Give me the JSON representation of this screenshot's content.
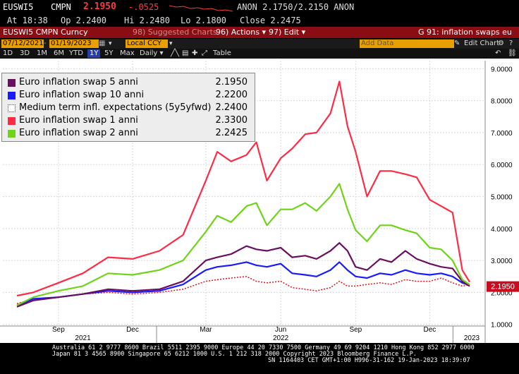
{
  "ticker": {
    "symbol": "EUSWI5",
    "source": "CMPN",
    "last": "2.1950",
    "change": "-.0525",
    "bid_ask": "ANON 2.1750/2.2150 ANON",
    "time": "At 18:38",
    "open": "Op 2.2400",
    "high": "Hi 2.2480",
    "low": "Lo 2.1800",
    "close": "Close 2.2475"
  },
  "menubar": {
    "security": "EUSWI5 CMPN Curncy",
    "suggested": "98) Suggested Charts",
    "actions": "96) Actions ▾",
    "edit": "97) Edit ▾",
    "function": "G 91: inflation swaps eu"
  },
  "toolbar1": {
    "start_date": "07/12/2021",
    "end_date": "01/19/2023",
    "currency": "Local CCY",
    "add_data": "Add Data",
    "edit_chart": "Edit Chart"
  },
  "toolbar2": {
    "ranges": [
      "1D",
      "3D",
      "1M",
      "6M",
      "YTD",
      "1Y",
      "5Y",
      "Max"
    ],
    "selected_range": "1Y",
    "frequency": "Daily ▾",
    "table": "Table"
  },
  "last_price_tag": "2.1950",
  "colors": {
    "series1": "#6a0f5e",
    "series2": "#1a1aff",
    "series3": "#e0101a",
    "series4": "#ff2b45",
    "series5": "#6fd319",
    "menubar": "#8b0d14",
    "background": "#ffffff"
  },
  "chart_data": {
    "type": "line",
    "x": [
      "2021-07-12",
      "2021-08-01",
      "2021-09-01",
      "2021-10-01",
      "2021-11-01",
      "2021-12-01",
      "2022-01-03",
      "2022-02-01",
      "2022-03-01",
      "2022-03-15",
      "2022-04-01",
      "2022-04-20",
      "2022-05-02",
      "2022-05-15",
      "2022-06-01",
      "2022-06-15",
      "2022-07-01",
      "2022-07-15",
      "2022-08-01",
      "2022-08-12",
      "2022-08-22",
      "2022-09-01",
      "2022-09-15",
      "2022-10-01",
      "2022-10-15",
      "2022-11-01",
      "2022-11-15",
      "2022-12-01",
      "2022-12-15",
      "2022-12-29",
      "2023-01-10",
      "2023-01-19"
    ],
    "series": [
      {
        "name": "Euro inflation swap 5 anni",
        "last": "2.1950",
        "values": [
          1.55,
          1.75,
          1.85,
          1.95,
          2.1,
          2.05,
          2.1,
          2.35,
          3.0,
          3.1,
          3.2,
          3.45,
          3.35,
          3.3,
          3.4,
          3.1,
          3.15,
          3.05,
          3.3,
          3.55,
          3.3,
          2.8,
          2.7,
          3.05,
          2.95,
          3.3,
          3.05,
          2.9,
          2.8,
          2.75,
          2.35,
          2.195
        ]
      },
      {
        "name": "Euro inflation swap 10 anni",
        "last": "2.2200",
        "values": [
          1.6,
          1.8,
          1.85,
          1.95,
          2.05,
          2.0,
          2.05,
          2.25,
          2.7,
          2.8,
          2.85,
          2.95,
          2.85,
          2.8,
          2.9,
          2.6,
          2.55,
          2.5,
          2.7,
          2.95,
          2.7,
          2.5,
          2.45,
          2.6,
          2.55,
          2.7,
          2.6,
          2.55,
          2.6,
          2.5,
          2.3,
          2.22
        ]
      },
      {
        "name": "Medium term infl. expectations (5y5yfwd)",
        "last": "2.2400",
        "values": [
          1.65,
          1.8,
          1.85,
          1.95,
          2.0,
          1.95,
          2.0,
          2.1,
          2.35,
          2.4,
          2.45,
          2.5,
          2.35,
          2.3,
          2.35,
          2.15,
          2.1,
          2.05,
          2.15,
          2.35,
          2.2,
          2.2,
          2.25,
          2.3,
          2.25,
          2.4,
          2.35,
          2.35,
          2.45,
          2.3,
          2.2,
          2.24
        ]
      },
      {
        "name": "Euro inflation swap 1 anni",
        "last": "2.3300",
        "values": [
          1.9,
          2.0,
          2.3,
          2.6,
          3.1,
          3.05,
          3.3,
          3.8,
          5.5,
          6.4,
          6.1,
          6.3,
          6.7,
          5.5,
          6.2,
          6.5,
          6.95,
          7.0,
          7.6,
          8.6,
          7.2,
          6.4,
          5.0,
          5.8,
          5.8,
          5.7,
          5.6,
          4.9,
          4.7,
          4.5,
          2.7,
          2.33
        ]
      },
      {
        "name": "Euro inflation swap 2 anni",
        "last": "2.2425",
        "values": [
          1.6,
          1.85,
          2.05,
          2.2,
          2.6,
          2.55,
          2.7,
          3.0,
          3.9,
          4.4,
          4.2,
          4.7,
          4.8,
          4.1,
          4.6,
          4.6,
          4.8,
          4.55,
          5.0,
          5.4,
          4.6,
          3.95,
          3.6,
          4.1,
          4.1,
          3.95,
          3.85,
          3.4,
          3.35,
          3.0,
          2.4,
          2.2425
        ]
      }
    ],
    "y_ticks": [
      "1.0000",
      "2.0000",
      "3.0000",
      "4.0000",
      "5.0000",
      "6.0000",
      "7.0000",
      "8.0000",
      "9.0000"
    ],
    "ylim": [
      0.95,
      9.25
    ],
    "x_month_labels": [
      "Sep",
      "Dec",
      "Mar",
      "Jun",
      "Sep",
      "Dec"
    ],
    "x_year_labels": [
      "2021",
      "2022",
      "2023"
    ],
    "grid": true,
    "legend_placement": "top-left"
  },
  "footer": {
    "line1": "Australia 61 2 9777 8600 Brazil 5511 2395 9000 Europe 44 20 7330 7500 Germany 49 69 9204 1210 Hong Kong 852 2977 6000",
    "line2": "Japan 81 3 4565 8900        Singapore 65 6212 1000        U.S. 1 212 318 2000        Copyright 2023 Bloomberg Finance L.P.",
    "line3": "SN 1164403 CET  GMT+1:00 H996-31-162 19-Jan-2023 18:39:07"
  }
}
